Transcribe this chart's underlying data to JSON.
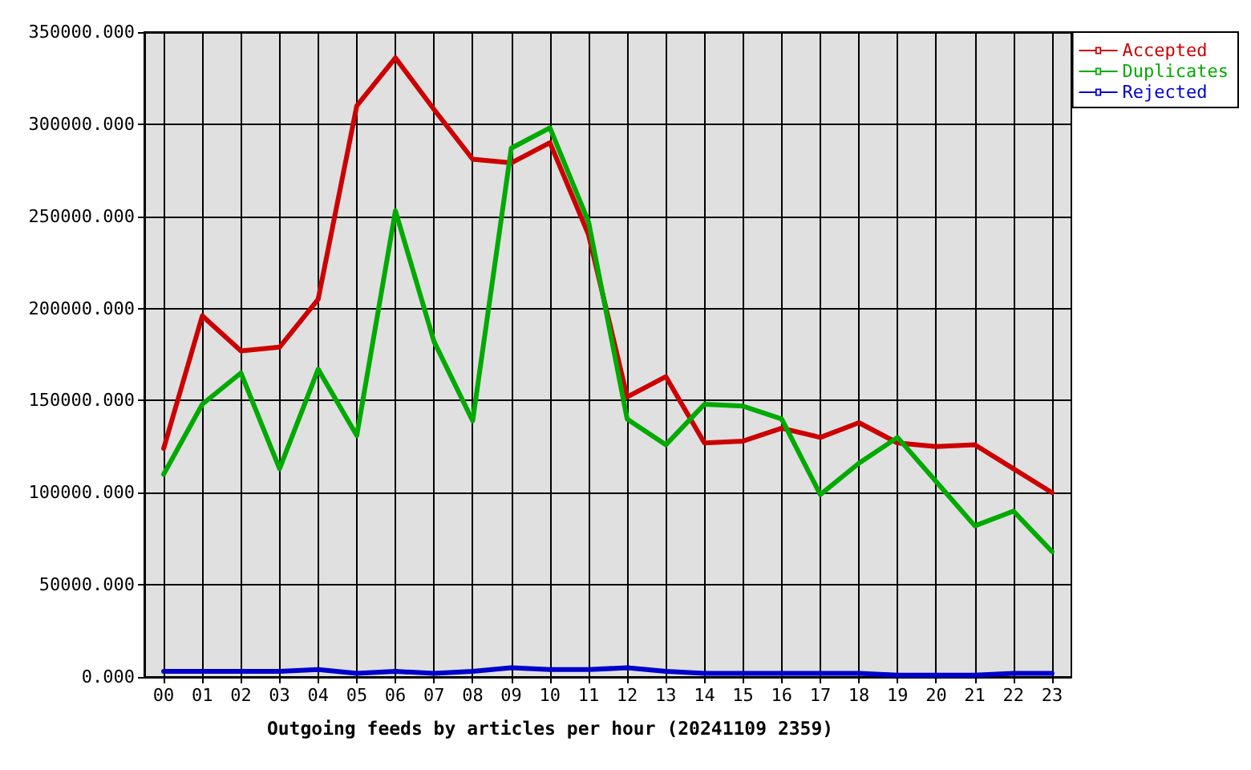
{
  "chart_data": {
    "type": "line",
    "xlabel": "Outgoing feeds by articles per hour (20241109 2359)",
    "categories": [
      "00",
      "01",
      "02",
      "03",
      "04",
      "05",
      "06",
      "07",
      "08",
      "09",
      "10",
      "11",
      "12",
      "13",
      "14",
      "15",
      "16",
      "17",
      "18",
      "19",
      "20",
      "21",
      "22",
      "23"
    ],
    "series": [
      {
        "name": "Accepted",
        "color": "#cc0000",
        "values": [
          124000,
          196000,
          177000,
          179000,
          205000,
          310000,
          336000,
          308000,
          281000,
          279000,
          290000,
          240000,
          152000,
          163000,
          127000,
          128000,
          135000,
          130000,
          138000,
          127000,
          125000,
          126000,
          113000,
          100000
        ]
      },
      {
        "name": "Duplicates",
        "color": "#00aa00",
        "values": [
          110000,
          148000,
          165000,
          113000,
          167000,
          131000,
          253000,
          182000,
          139000,
          287000,
          298000,
          247000,
          140000,
          126000,
          148000,
          147000,
          140000,
          99000,
          116000,
          130000,
          106000,
          82000,
          90000,
          68000
        ]
      },
      {
        "name": "Rejected",
        "color": "#0000cc",
        "values": [
          3000,
          3000,
          3000,
          3000,
          4000,
          2000,
          3000,
          2000,
          3000,
          5000,
          4000,
          4000,
          5000,
          3000,
          2000,
          2000,
          2000,
          2000,
          2000,
          1000,
          1000,
          1000,
          2000,
          2000
        ]
      }
    ],
    "ylim": [
      0,
      350000
    ],
    "yticks": [
      {
        "value": 0,
        "label": "0.000"
      },
      {
        "value": 50000,
        "label": "50000.000"
      },
      {
        "value": 100000,
        "label": "100000.000"
      },
      {
        "value": 150000,
        "label": "150000.000"
      },
      {
        "value": 200000,
        "label": "200000.000"
      },
      {
        "value": 250000,
        "label": "250000.000"
      },
      {
        "value": 300000,
        "label": "300000.000"
      },
      {
        "value": 350000,
        "label": "350000.000"
      }
    ],
    "grid": true,
    "legend": "top right",
    "marker": "none",
    "line_style": "solid"
  }
}
